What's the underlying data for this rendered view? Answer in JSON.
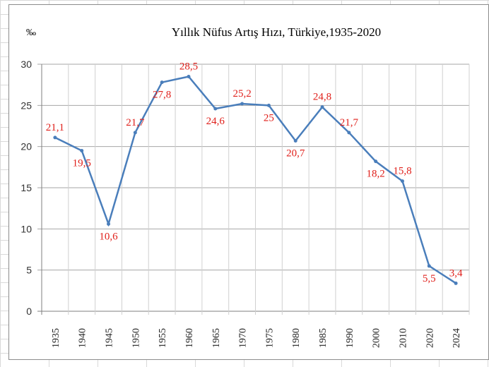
{
  "chart_data": {
    "type": "line",
    "title": "Yıllık Nüfus Artış Hızı, Türkiye,1935-2020",
    "ylabel": "‰",
    "xlabel": "",
    "categories": [
      "1935",
      "1940",
      "1945",
      "1950",
      "1955",
      "1960",
      "1965",
      "1970",
      "1975",
      "1980",
      "1985",
      "1990",
      "2000",
      "2010",
      "2020",
      "2024"
    ],
    "values": [
      21.1,
      19.5,
      10.6,
      21.7,
      27.8,
      28.5,
      24.6,
      25.2,
      25,
      20.7,
      24.8,
      21.7,
      18.2,
      15.8,
      5.5,
      3.4
    ],
    "data_labels": [
      "21,1",
      "19,5",
      "10,6",
      "21,7",
      "27,8",
      "28,5",
      "24,6",
      "25,2",
      "25",
      "20,7",
      "24,8",
      "21,7",
      "18,2",
      "15,8",
      "5,5",
      "3,4"
    ],
    "label_position": [
      "above",
      "below",
      "below",
      "above",
      "below",
      "above",
      "below",
      "above",
      "below",
      "below",
      "above",
      "above",
      "below",
      "above",
      "below",
      "above"
    ],
    "yticks": [
      "0",
      "5",
      "10",
      "15",
      "20",
      "25",
      "30"
    ],
    "ylim": [
      0,
      30
    ],
    "grid": true,
    "line_color": "#4a7ebb",
    "label_color": "#e0201b"
  }
}
